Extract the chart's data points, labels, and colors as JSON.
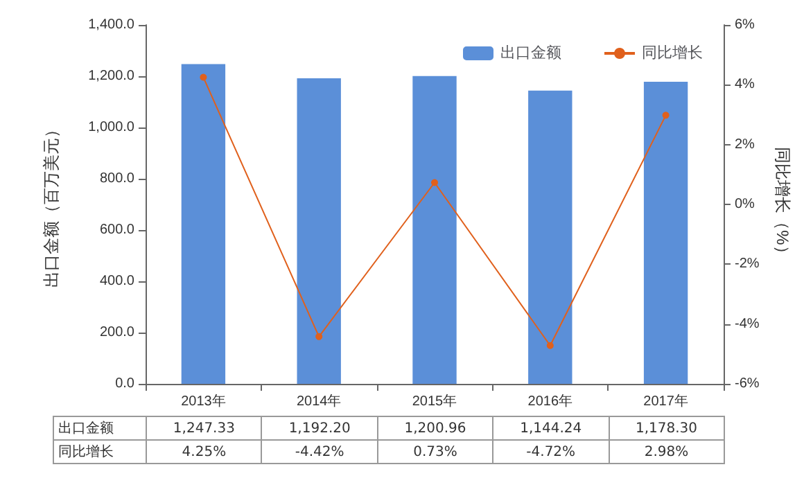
{
  "chart_data": {
    "type": "bar",
    "ylabel": "出口金额（百万美元）",
    "y2label": "同比增长（%）",
    "categories": [
      "2013年",
      "2014年",
      "2015年",
      "2016年",
      "2017年"
    ],
    "series": [
      {
        "name": "出口金额",
        "color": "#5b8fd8",
        "values": [
          1247.33,
          1192.2,
          1200.96,
          1144.24,
          1178.3
        ],
        "value_labels": [
          "1,247.33",
          "1,192.20",
          "1,200.96",
          "1,144.24",
          "1,178.30"
        ]
      },
      {
        "name": "同比增长",
        "type": "line",
        "axis": "y2",
        "color": "#e0601c",
        "marker": "circle",
        "values": [
          4.25,
          -4.42,
          0.73,
          -4.72,
          2.98
        ],
        "value_labels": [
          "4.25%",
          "-4.42%",
          "0.73%",
          "-4.72%",
          "2.98%"
        ]
      }
    ],
    "ylim": [
      0,
      1400
    ],
    "yticks": [
      {
        "value": 0,
        "label": "0.0"
      },
      {
        "value": 200,
        "label": "200.0"
      },
      {
        "value": 400,
        "label": "400.0"
      },
      {
        "value": 600,
        "label": "600.0"
      },
      {
        "value": 800,
        "label": "800.0"
      },
      {
        "value": 1000,
        "label": "1,000.0"
      },
      {
        "value": 1200,
        "label": "1,200.0"
      },
      {
        "value": 1400,
        "label": "1,400.0"
      }
    ],
    "y2lim": [
      -6,
      6
    ],
    "y2ticks": [
      {
        "value": -6,
        "label": "-6%"
      },
      {
        "value": -4,
        "label": "-4%"
      },
      {
        "value": -2,
        "label": "-2%"
      },
      {
        "value": 0,
        "label": "0%"
      },
      {
        "value": 2,
        "label": "2%"
      },
      {
        "value": 4,
        "label": "4%"
      },
      {
        "value": 6,
        "label": "6%"
      }
    ],
    "legend": "top right"
  }
}
